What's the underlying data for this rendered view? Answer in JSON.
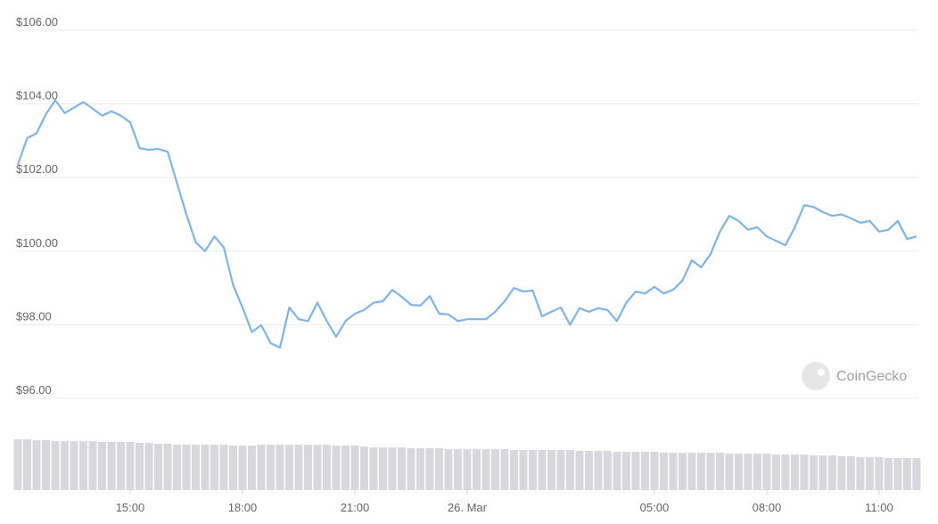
{
  "chart_data": {
    "type": "line",
    "x": [
      12,
      12.25,
      12.5,
      12.75,
      13,
      13.25,
      13.5,
      13.75,
      14,
      14.25,
      14.5,
      14.75,
      15,
      15.25,
      15.5,
      15.75,
      16,
      16.25,
      16.5,
      16.75,
      17,
      17.25,
      17.5,
      17.75,
      18,
      18.25,
      18.5,
      18.75,
      19,
      19.25,
      19.5,
      19.75,
      20,
      20.25,
      20.5,
      20.75,
      21,
      21.25,
      21.5,
      21.75,
      22,
      22.25,
      22.5,
      22.75,
      23,
      23.25,
      23.5,
      23.75,
      24,
      24.25,
      24.5,
      24.75,
      25,
      25.25,
      25.5,
      25.75,
      26,
      26.25,
      26.5,
      26.75,
      27,
      27.25,
      27.5,
      27.75,
      28,
      28.25,
      28.5,
      28.75,
      29,
      29.25,
      29.5,
      29.75,
      30,
      30.25,
      30.5,
      30.75,
      31,
      31.25,
      31.5,
      31.75,
      32,
      32.25,
      32.5,
      32.75,
      33,
      33.25,
      33.5,
      33.75,
      34,
      34.25,
      34.5,
      34.75,
      35,
      35.25,
      35.5,
      35.75,
      36
    ],
    "series": [
      {
        "color": "#7cb5ec",
        "values": [
          102.35,
          103.07,
          103.2,
          103.72,
          104.1,
          103.75,
          103.9,
          104.05,
          103.87,
          103.68,
          103.8,
          103.68,
          103.5,
          102.8,
          102.75,
          102.78,
          102.7,
          101.85,
          101.0,
          100.24,
          100.0,
          100.4,
          100.1,
          99.07,
          98.47,
          97.8,
          97.99,
          97.5,
          97.38,
          98.47,
          98.15,
          98.1,
          98.6,
          98.1,
          97.67,
          98.1,
          98.3,
          98.4,
          98.6,
          98.64,
          98.95,
          98.76,
          98.54,
          98.52,
          98.78,
          98.3,
          98.28,
          98.1,
          98.15,
          98.15,
          98.15,
          98.35,
          98.64,
          99.0,
          98.9,
          98.93,
          98.23,
          98.35,
          98.47,
          98.0,
          98.45,
          98.35,
          98.45,
          98.4,
          98.1,
          98.6,
          98.9,
          98.85,
          99.03,
          98.85,
          98.95,
          99.2,
          99.75,
          99.56,
          99.92,
          100.53,
          100.96,
          100.82,
          100.58,
          100.65,
          100.4,
          100.28,
          100.16,
          100.65,
          101.25,
          101.2,
          101.06,
          100.96,
          101.0,
          100.89,
          100.77,
          100.82,
          100.53,
          100.58,
          100.82,
          100.33,
          100.4
        ]
      },
      {
        "color": "#d8d8dc",
        "axis": "y2",
        "values": [
          57,
          57,
          56,
          56,
          55,
          55,
          55,
          55,
          55,
          54,
          54,
          54,
          54,
          53,
          53,
          52,
          52,
          51,
          51,
          51,
          51,
          51,
          51,
          50,
          50,
          50,
          51,
          51,
          51,
          51,
          51,
          51,
          51,
          51,
          50,
          50,
          50,
          49,
          48,
          48,
          48,
          48,
          47,
          47,
          47,
          47,
          46,
          46,
          46,
          46,
          46,
          46,
          46,
          45,
          45,
          45,
          45,
          45,
          45,
          45,
          44,
          44,
          44,
          44,
          43,
          43,
          43,
          43,
          43,
          42,
          42,
          42,
          42,
          42,
          42,
          42,
          41,
          41,
          41,
          41,
          41,
          40,
          40,
          40,
          40,
          39,
          39,
          39,
          38,
          38,
          37,
          37,
          37,
          36,
          36,
          36,
          36
        ]
      }
    ],
    "xlim": [
      12,
      36.05
    ],
    "xticks": [
      {
        "value": 15,
        "label": "15:00"
      },
      {
        "value": 18,
        "label": "18:00"
      },
      {
        "value": 21,
        "label": "21:00"
      },
      {
        "value": 24,
        "label": "26. Mar"
      },
      {
        "value": 29,
        "label": "05:00"
      },
      {
        "value": 32,
        "label": "08:00"
      },
      {
        "value": 35,
        "label": "11:00"
      }
    ],
    "ylim": [
      96,
      106
    ],
    "yticks": [
      {
        "value": 96,
        "label": "$96.00"
      },
      {
        "value": 98,
        "label": "$98.00"
      },
      {
        "value": 100,
        "label": "$100.00"
      },
      {
        "value": 102,
        "label": "$102.00"
      },
      {
        "value": 104,
        "label": "$104.00"
      },
      {
        "value": 106,
        "label": "$106.00"
      }
    ],
    "y2lim": [
      0,
      60
    ],
    "grid": true,
    "watermark": "CoinGecko"
  }
}
